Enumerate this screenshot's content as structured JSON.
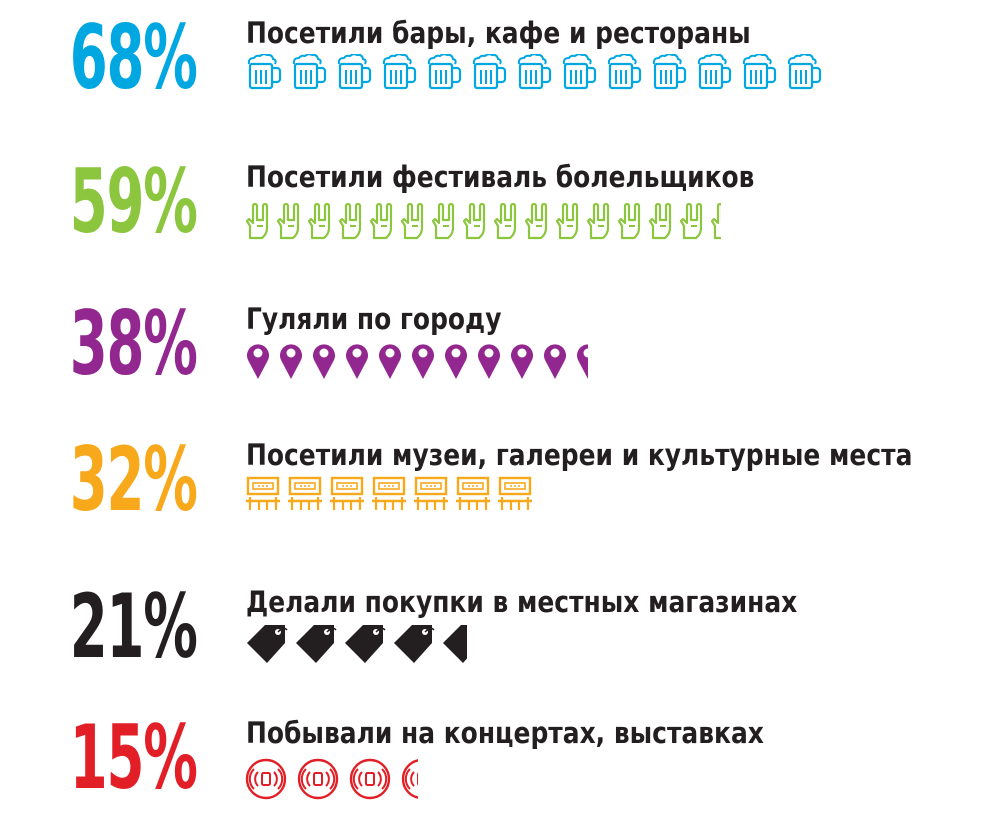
{
  "rows": [
    {
      "percent": "68%",
      "label": "Посетили бары, кафе и рестораны",
      "color": "#00a7e1",
      "icon": "beer-mug-icon",
      "icons": 13,
      "last_fill": 1.0
    },
    {
      "percent": "59%",
      "label": "Посетили фестиваль болельщиков",
      "color": "#8cc63f",
      "icon": "rock-hand-icon",
      "icons": 16,
      "last_fill": 0.4
    },
    {
      "percent": "38%",
      "label": "Гуляли по городу",
      "color": "#92278f",
      "icon": "map-pin-icon",
      "icons": 11,
      "last_fill": 0.5
    },
    {
      "percent": "32%",
      "label": "Посетили музеи, галереи и культурные места",
      "color": "#f7a81b",
      "icon": "museum-bench-icon",
      "icons": 7,
      "last_fill": 1.0
    },
    {
      "percent": "21%",
      "label": "Делали покупки в местных магазинах",
      "color": "#231f20",
      "icon": "price-tag-icon",
      "icons": 5,
      "last_fill": 0.6
    },
    {
      "percent": "15%",
      "label": "Побывали на концертах, выставках",
      "color": "#e21e26",
      "icon": "speaker-icon",
      "icons": 4,
      "last_fill": 0.4
    }
  ]
}
